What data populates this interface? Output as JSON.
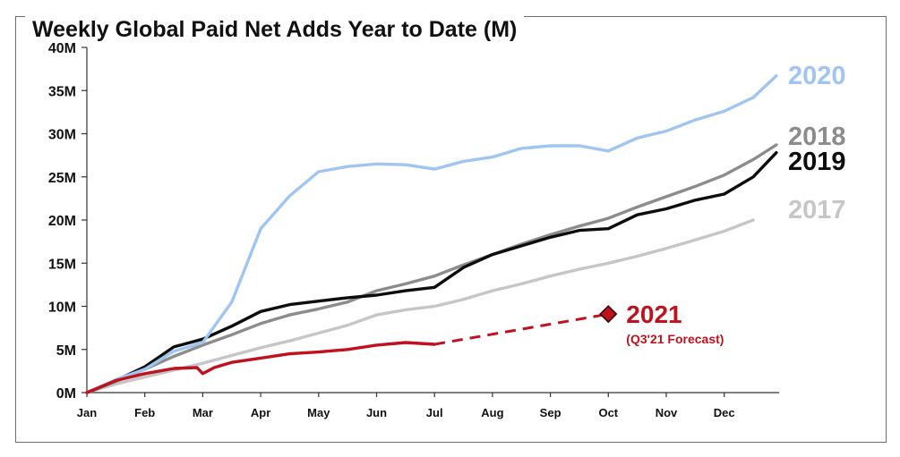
{
  "chart_data": {
    "type": "line",
    "title": "Weekly Global Paid Net Adds Year to Date (M)",
    "xlabel": "",
    "ylabel": "",
    "ylim": [
      0,
      40
    ],
    "grid": false,
    "x_categories": [
      "Jan",
      "Feb",
      "Mar",
      "Apr",
      "May",
      "Jun",
      "Jul",
      "Aug",
      "Sep",
      "Oct",
      "Nov",
      "Dec"
    ],
    "y_ticks": [
      "0M",
      "5M",
      "10M",
      "15M",
      "20M",
      "25M",
      "30M",
      "35M",
      "40M"
    ],
    "x_unit": "month (0 = Jan)",
    "series": [
      {
        "name": "2017",
        "color": "#c6c6c6",
        "x": [
          0,
          0.5,
          1,
          1.5,
          2,
          2.5,
          3,
          3.5,
          4,
          4.5,
          5,
          5.5,
          6,
          6.5,
          7,
          7.5,
          8,
          8.5,
          9,
          9.5,
          10,
          10.5,
          11,
          11.5
        ],
        "y": [
          0,
          1.0,
          1.8,
          2.6,
          3.4,
          4.3,
          5.2,
          6.0,
          6.9,
          7.8,
          9.0,
          9.6,
          10.0,
          10.8,
          11.8,
          12.6,
          13.5,
          14.3,
          15.0,
          15.8,
          16.7,
          17.7,
          18.7,
          20.0
        ]
      },
      {
        "name": "2018",
        "color": "#8c8c8c",
        "x": [
          0,
          0.5,
          1,
          1.5,
          2,
          2.5,
          3,
          3.5,
          4,
          4.5,
          5,
          5.5,
          6,
          6.5,
          7,
          7.5,
          8,
          8.5,
          9,
          9.5,
          10,
          10.5,
          11,
          11.5,
          11.9
        ],
        "y": [
          0,
          1.3,
          2.7,
          4.2,
          5.5,
          6.7,
          8.0,
          9.0,
          9.7,
          10.5,
          11.8,
          12.6,
          13.5,
          14.8,
          16.0,
          17.2,
          18.3,
          19.3,
          20.2,
          21.5,
          22.7,
          23.9,
          25.2,
          27.0,
          28.7
        ]
      },
      {
        "name": "2019",
        "color": "#0d0d0d",
        "x": [
          0,
          0.5,
          1,
          1.5,
          2,
          2.5,
          3,
          3.5,
          4,
          4.5,
          5,
          5.5,
          6,
          6.5,
          7,
          7.5,
          8,
          8.5,
          9,
          9.5,
          10,
          10.5,
          11,
          11.5,
          11.9
        ],
        "y": [
          0,
          1.4,
          3.0,
          5.3,
          6.2,
          7.7,
          9.4,
          10.2,
          10.6,
          11.0,
          11.3,
          11.8,
          12.2,
          14.5,
          16.0,
          17.0,
          18.0,
          18.8,
          19.0,
          20.6,
          21.3,
          22.3,
          23.0,
          25.0,
          27.8
        ]
      },
      {
        "name": "2020",
        "color": "#9fc5f0",
        "x": [
          0,
          0.5,
          1,
          1.5,
          2,
          2.5,
          3,
          3.5,
          4,
          4.5,
          5,
          5.5,
          6,
          6.5,
          7,
          7.5,
          8,
          8.5,
          9,
          9.5,
          10,
          10.5,
          11,
          11.5,
          11.9
        ],
        "y": [
          0,
          1.5,
          2.7,
          4.8,
          5.8,
          10.5,
          19.0,
          22.8,
          25.6,
          26.2,
          26.5,
          26.4,
          25.9,
          26.8,
          27.3,
          28.3,
          28.6,
          28.6,
          28.0,
          29.5,
          30.3,
          31.6,
          32.6,
          34.2,
          36.7
        ]
      },
      {
        "name": "2021",
        "color": "#c0111f",
        "x": [
          0,
          0.5,
          1,
          1.5,
          1.9,
          2.0,
          2.2,
          2.5,
          3,
          3.5,
          4,
          4.5,
          5,
          5.5,
          6
        ],
        "y": [
          0,
          1.4,
          2.2,
          2.8,
          2.9,
          2.2,
          2.9,
          3.5,
          4.0,
          4.5,
          4.7,
          5.0,
          5.5,
          5.8,
          5.6
        ]
      },
      {
        "name": "2021 forecast",
        "color": "#c0111f",
        "dashed": true,
        "x": [
          6,
          9
        ],
        "y": [
          5.6,
          9.1
        ]
      }
    ],
    "annotations": [
      {
        "text": "2021",
        "note": "(Q3'21 Forecast)",
        "point": {
          "x": 9,
          "y": 9.1
        },
        "marker": "diamond",
        "color": "#c0111f"
      }
    ],
    "legend": "right-edge labels"
  }
}
